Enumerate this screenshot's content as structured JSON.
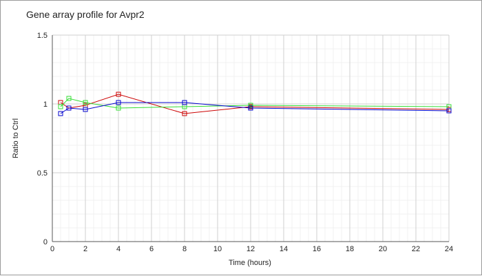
{
  "chart_data": {
    "type": "line",
    "title": "Gene array profile for Avpr2",
    "xlabel": "Time (hours)",
    "ylabel": "Ratio to Ctrl",
    "xlim": [
      0,
      24
    ],
    "ylim": [
      0,
      1.5
    ],
    "xticks": [
      0,
      2,
      4,
      6,
      8,
      10,
      12,
      14,
      16,
      18,
      20,
      22,
      24
    ],
    "yticks": [
      0,
      0.5,
      1,
      1.5
    ],
    "ytick_labels": [
      "0",
      "0.5",
      "1",
      "1.5"
    ],
    "grid": true,
    "legend": "none",
    "series": [
      {
        "color": "#cc0000",
        "x": [
          0.5,
          1,
          2,
          4,
          8,
          12,
          24
        ],
        "y": [
          1.01,
          0.97,
          0.99,
          1.07,
          0.93,
          0.98,
          0.96
        ]
      },
      {
        "color": "#33dd33",
        "x": [
          0.5,
          1,
          2,
          4,
          8,
          12,
          24
        ],
        "y": [
          0.98,
          1.04,
          1.01,
          0.97,
          0.98,
          0.99,
          0.98
        ]
      },
      {
        "color": "#0000cc",
        "x": [
          0.5,
          1,
          2,
          4,
          8,
          12,
          24
        ],
        "y": [
          0.93,
          0.97,
          0.96,
          1.01,
          1.01,
          0.97,
          0.95
        ]
      }
    ]
  }
}
